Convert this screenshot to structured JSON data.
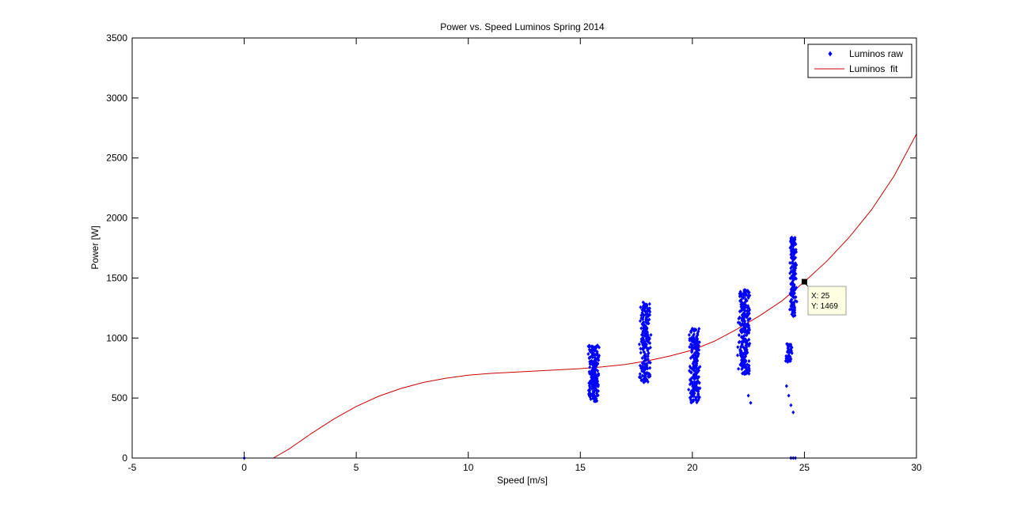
{
  "chart_data": {
    "type": "scatter",
    "title": "Power vs. Speed Luminos Spring 2014",
    "xlabel": "Speed [m/s]",
    "ylabel": "Power [W]",
    "xlim": [
      -5,
      30
    ],
    "ylim": [
      0,
      3500
    ],
    "xticks": [
      -5,
      0,
      5,
      10,
      15,
      20,
      25,
      30
    ],
    "yticks": [
      0,
      500,
      1000,
      1500,
      2000,
      2500,
      3000,
      3500
    ],
    "grid": false,
    "legend_position": "top-right",
    "colors": {
      "raw": "#0000ff",
      "fit": "#cc0000"
    },
    "series": [
      {
        "name": "Luminos raw",
        "kind": "markers",
        "marker": "diamond",
        "clusters": [
          {
            "x_center": 15.6,
            "x_spread": 0.45,
            "y_min": 470,
            "y_max": 940,
            "count": 230
          },
          {
            "x_center": 17.9,
            "x_spread": 0.45,
            "y_min": 630,
            "y_max": 1300,
            "count": 230
          },
          {
            "x_center": 20.1,
            "x_spread": 0.45,
            "y_min": 460,
            "y_max": 1080,
            "count": 230
          },
          {
            "x_center": 22.3,
            "x_spread": 0.5,
            "y_min": 700,
            "y_max": 1400,
            "count": 260
          },
          {
            "x_center": 24.5,
            "x_spread": 0.3,
            "y_min": 1180,
            "y_max": 1840,
            "count": 180
          },
          {
            "x_center": 24.3,
            "x_spread": 0.3,
            "y_min": 800,
            "y_max": 950,
            "count": 45
          }
        ],
        "points": [
          [
            0,
            0
          ],
          [
            22.6,
            460
          ],
          [
            22.5,
            520
          ],
          [
            24.2,
            600
          ],
          [
            24.3,
            520
          ],
          [
            24.4,
            440
          ],
          [
            24.5,
            380
          ],
          [
            24.5,
            0
          ],
          [
            24.6,
            0
          ],
          [
            24.4,
            0
          ]
        ]
      },
      {
        "name": "Luminos  fit",
        "kind": "line",
        "points": [
          [
            1.3,
            0
          ],
          [
            2,
            75
          ],
          [
            3,
            205
          ],
          [
            4,
            325
          ],
          [
            5,
            430
          ],
          [
            6,
            515
          ],
          [
            7,
            580
          ],
          [
            8,
            630
          ],
          [
            9,
            665
          ],
          [
            10,
            690
          ],
          [
            11,
            705
          ],
          [
            12,
            715
          ],
          [
            13,
            725
          ],
          [
            14,
            735
          ],
          [
            15,
            745
          ],
          [
            16,
            760
          ],
          [
            17,
            780
          ],
          [
            18,
            810
          ],
          [
            19,
            850
          ],
          [
            20,
            900
          ],
          [
            21,
            975
          ],
          [
            22,
            1075
          ],
          [
            23,
            1185
          ],
          [
            24,
            1310
          ],
          [
            25,
            1469
          ],
          [
            26,
            1640
          ],
          [
            27,
            1840
          ],
          [
            28,
            2070
          ],
          [
            29,
            2350
          ],
          [
            30,
            2700
          ]
        ]
      }
    ],
    "datatip": {
      "x_text": "X: 25",
      "y_text": "Y: 1469",
      "x": 25,
      "y": 1469
    }
  }
}
